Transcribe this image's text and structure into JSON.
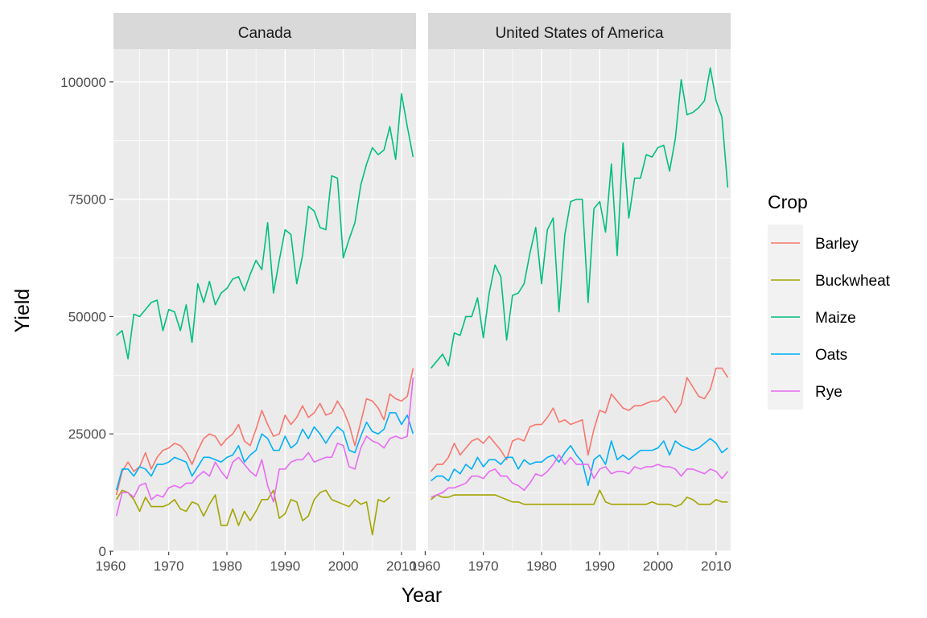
{
  "chart_data": {
    "type": "line",
    "xlabel": "Year",
    "ylabel": "Yield",
    "xlim": [
      1960.5,
      2012.5
    ],
    "ylim": [
      0,
      107000
    ],
    "x_ticks": [
      1960,
      1970,
      1980,
      1990,
      2000,
      2010
    ],
    "y_ticks": [
      0,
      25000,
      50000,
      75000,
      100000
    ],
    "y_tick_labels": [
      "0",
      "25000",
      "50000",
      "75000",
      "100000"
    ],
    "legend": {
      "title": "Crop",
      "placement": "right",
      "entries": [
        "Barley",
        "Buckwheat",
        "Maize",
        "Oats",
        "Rye"
      ]
    },
    "colors": {
      "Barley": "#F8766D",
      "Buckwheat": "#A3A500",
      "Maize": "#00BF7D",
      "Oats": "#00B0F6",
      "Rye": "#E76BF3"
    },
    "x_start": 1961,
    "panels": [
      {
        "title": "Canada",
        "series": [
          {
            "name": "Barley",
            "values": [
              12000,
              17000,
              19000,
              17000,
              18000,
              21000,
              17500,
              20000,
              21500,
              22000,
              23000,
              22500,
              21000,
              18500,
              21500,
              24000,
              25000,
              24500,
              22500,
              24000,
              25000,
              27000,
              23500,
              22500,
              26000,
              30000,
              27000,
              24500,
              25000,
              29000,
              27000,
              28500,
              31000,
              28500,
              29500,
              31500,
              29000,
              29500,
              32000,
              30000,
              27000,
              22500,
              27500,
              32500,
              32000,
              30500,
              28000,
              33500,
              32500,
              32000,
              33000,
              39000
            ]
          },
          {
            "name": "Buckwheat",
            "values": [
              11000,
              13000,
              12500,
              11000,
              8500,
              11500,
              9500,
              9500,
              9500,
              10000,
              11000,
              9000,
              8500,
              10500,
              10000,
              7500,
              10000,
              12000,
              5500,
              5500,
              9000,
              5500,
              8500,
              6500,
              8500,
              11000,
              11000,
              13000,
              7000,
              8000,
              11000,
              10500,
              6500,
              7500,
              11000,
              12500,
              13000,
              11000,
              10500,
              10000,
              9500,
              11000,
              10000,
              10500,
              3500,
              11000,
              10500,
              11500
            ]
          },
          {
            "name": "Maize",
            "values": [
              46000,
              47000,
              41000,
              50500,
              50000,
              51500,
              53000,
              53500,
              47000,
              51500,
              51000,
              47000,
              52500,
              44500,
              57000,
              53000,
              57500,
              52500,
              55000,
              56000,
              58000,
              58500,
              55500,
              59000,
              62000,
              60000,
              70000,
              55000,
              62000,
              68500,
              67500,
              57000,
              63000,
              73500,
              72500,
              69000,
              68500,
              80000,
              79500,
              62500,
              66500,
              70000,
              78000,
              82500,
              86000,
              84500,
              85500,
              90500,
              83500,
              97500,
              90500,
              84000
            ]
          },
          {
            "name": "Oats",
            "values": [
              13000,
              17500,
              17500,
              16000,
              18000,
              17500,
              16000,
              18500,
              18500,
              19000,
              20000,
              19500,
              19000,
              16000,
              18000,
              20000,
              20000,
              19500,
              19000,
              20000,
              20500,
              22500,
              19000,
              20500,
              21500,
              25000,
              24000,
              21500,
              21500,
              24500,
              22000,
              23000,
              26000,
              24000,
              26500,
              25000,
              23000,
              25000,
              26500,
              25500,
              21500,
              21000,
              24500,
              27500,
              25500,
              25000,
              26000,
              29500,
              29500,
              27000,
              29000,
              25000
            ]
          },
          {
            "name": "Rye",
            "values": [
              7500,
              12500,
              12500,
              11500,
              14000,
              14500,
              11000,
              12000,
              11500,
              13500,
              14000,
              13500,
              14500,
              14500,
              16000,
              17000,
              16000,
              19000,
              17000,
              15500,
              19000,
              20000,
              18500,
              17000,
              16000,
              19500,
              14000,
              10500,
              17500,
              17500,
              19000,
              19500,
              19500,
              21000,
              19000,
              19500,
              20000,
              20000,
              23000,
              22500,
              18000,
              17500,
              22000,
              24500,
              23500,
              23000,
              22000,
              24000,
              24500,
              24000,
              24500,
              37000
            ]
          }
        ]
      },
      {
        "title": "United States of America",
        "series": [
          {
            "name": "Barley",
            "values": [
              17000,
              18500,
              18500,
              20000,
              23000,
              20500,
              22000,
              23500,
              24000,
              23000,
              24500,
              23000,
              21500,
              19500,
              23500,
              24000,
              23500,
              26500,
              27000,
              27000,
              28500,
              30500,
              27500,
              28000,
              27000,
              27500,
              28000,
              20500,
              26000,
              30000,
              29500,
              33500,
              32000,
              30500,
              30000,
              31000,
              31000,
              31500,
              32000,
              32000,
              33000,
              31500,
              29500,
              31500,
              37000,
              35000,
              33000,
              32500,
              34500,
              39000,
              39000,
              37000
            ]
          },
          {
            "name": "Buckwheat",
            "values": [
              11000,
              12000,
              11500,
              11500,
              12000,
              12000,
              12000,
              12000,
              12000,
              12000,
              12000,
              12000,
              11500,
              11000,
              10500,
              10500,
              10000,
              10000,
              10000,
              10000,
              10000,
              10000,
              10000,
              10000,
              10000,
              10000,
              10000,
              10000,
              10000,
              13000,
              10500,
              10000,
              10000,
              10000,
              10000,
              10000,
              10000,
              10000,
              10500,
              10000,
              10000,
              10000,
              9500,
              10000,
              11500,
              11000,
              10000,
              10000,
              10000,
              11000,
              10500,
              10500
            ]
          },
          {
            "name": "Maize",
            "values": [
              39000,
              40500,
              42000,
              39500,
              46500,
              46000,
              50000,
              50000,
              54000,
              45500,
              55000,
              61000,
              58500,
              45000,
              54500,
              55000,
              57000,
              63500,
              69000,
              57000,
              68500,
              71000,
              51000,
              67500,
              74500,
              75000,
              75000,
              53000,
              73000,
              74500,
              68000,
              82500,
              63000,
              87000,
              71000,
              79500,
              79500,
              84500,
              84000,
              86000,
              86500,
              81000,
              88000,
              100500,
              93000,
              93500,
              94500,
              96000,
              103000,
              96000,
              92500,
              77500
            ]
          },
          {
            "name": "Oats",
            "values": [
              15000,
              16000,
              16000,
              15000,
              17500,
              16500,
              18500,
              17500,
              20000,
              18000,
              19500,
              19500,
              18500,
              20000,
              20000,
              17500,
              19500,
              18500,
              19000,
              19000,
              20000,
              20500,
              19000,
              21000,
              22500,
              20500,
              19000,
              14000,
              19500,
              20500,
              18500,
              23500,
              19500,
              20500,
              19500,
              20500,
              21500,
              21500,
              21500,
              22000,
              23500,
              20500,
              23500,
              22500,
              22000,
              21500,
              22000,
              23000,
              24000,
              23000,
              21000,
              22000
            ]
          },
          {
            "name": "Rye",
            "values": [
              11500,
              12000,
              12500,
              13500,
              13500,
              14000,
              14500,
              16000,
              16000,
              15500,
              17000,
              17500,
              16000,
              16000,
              14500,
              14000,
              13000,
              14500,
              16500,
              16000,
              17000,
              18500,
              20500,
              18500,
              20000,
              18500,
              18500,
              18500,
              15500,
              17500,
              18000,
              16500,
              17000,
              17000,
              16500,
              18000,
              17500,
              18000,
              18000,
              18500,
              18000,
              18000,
              17500,
              16000,
              17500,
              17500,
              17000,
              16500,
              17500,
              17000,
              15500,
              17000
            ]
          }
        ]
      }
    ]
  }
}
